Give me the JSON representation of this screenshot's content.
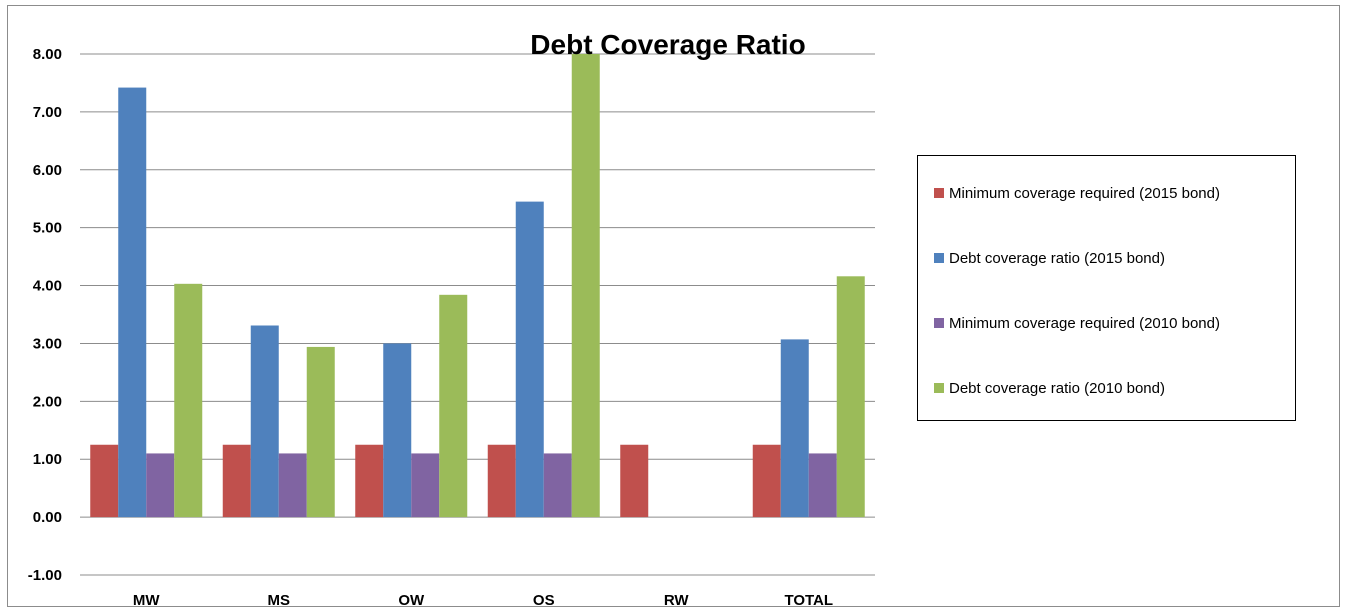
{
  "chart_data": {
    "type": "bar",
    "title": "Debt Coverage Ratio",
    "xlabel": "",
    "ylabel": "",
    "ylim": [
      -1,
      8
    ],
    "yticks": [
      "8.00",
      "7.00",
      "6.00",
      "5.00",
      "4.00",
      "3.00",
      "2.00",
      "1.00",
      "0.00",
      "-1.00"
    ],
    "grid": true,
    "legend_position": "right",
    "categories": [
      "MW",
      "MS",
      "OW",
      "OS",
      "RW",
      "TOTAL"
    ],
    "series": [
      {
        "name": "Minimum coverage required (2015 bond)",
        "color": "#c0504d",
        "values": [
          1.25,
          1.25,
          1.25,
          1.25,
          1.25,
          1.25
        ]
      },
      {
        "name": "Debt coverage ratio (2015 bond)",
        "color": "#4f81bd",
        "values": [
          7.42,
          3.31,
          3.0,
          5.45,
          null,
          3.07
        ]
      },
      {
        "name": "Minimum coverage required (2010 bond)",
        "color": "#8064a2",
        "values": [
          1.1,
          1.1,
          1.1,
          1.1,
          null,
          1.1
        ]
      },
      {
        "name": "Debt coverage ratio (2010 bond)",
        "color": "#9bbb59",
        "values": [
          4.03,
          2.94,
          3.84,
          8.0,
          null,
          4.16
        ]
      }
    ]
  }
}
